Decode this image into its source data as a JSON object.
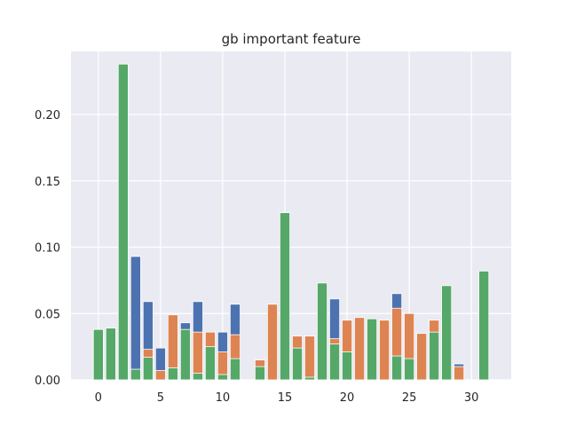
{
  "chart_data": {
    "type": "bar",
    "title": "gb important feature",
    "xlabel": "",
    "ylabel": "",
    "xlim": [
      -2.2,
      33.2
    ],
    "ylim": [
      0,
      0.2475
    ],
    "xticks": [
      0,
      5,
      10,
      15,
      20,
      25,
      30
    ],
    "yticks": [
      0.0,
      0.05,
      0.1,
      0.15,
      0.2
    ],
    "ytick_labels": [
      "0.00",
      "0.05",
      "0.10",
      "0.15",
      "0.20"
    ],
    "grid": true,
    "background": "#eaeaf2",
    "colors": {
      "blue": "#4c72b0",
      "orange": "#dd8452",
      "green": "#55a868"
    },
    "series": [
      {
        "color": "#4c72b0",
        "x": [
          0,
          1,
          2,
          3,
          4,
          5,
          6,
          7,
          8,
          9,
          10,
          11,
          12,
          13,
          14,
          15,
          16,
          17,
          18,
          19,
          20,
          21,
          22,
          23,
          24,
          25,
          26,
          27,
          28,
          29,
          30,
          31
        ],
        "values": [
          0.0,
          0.0,
          0.0,
          0.093,
          0.059,
          0.024,
          0.0,
          0.043,
          0.059,
          0.0,
          0.036,
          0.057,
          0.0,
          0.0,
          0.0,
          0.0,
          0.0,
          0.0,
          0.0,
          0.061,
          0.0,
          0.0,
          0.0,
          0.0,
          0.065,
          0.0,
          0.0,
          0.0,
          0.0,
          0.012,
          0.0,
          0.0
        ]
      },
      {
        "color": "#dd8452",
        "x": [
          0,
          1,
          2,
          3,
          4,
          5,
          6,
          7,
          8,
          9,
          10,
          11,
          12,
          13,
          14,
          15,
          16,
          17,
          18,
          19,
          20,
          21,
          22,
          23,
          24,
          25,
          26,
          27,
          28,
          29,
          30,
          31
        ],
        "values": [
          0.0,
          0.0,
          0.0,
          0.0,
          0.023,
          0.007,
          0.049,
          0.0,
          0.036,
          0.036,
          0.021,
          0.034,
          0.0,
          0.015,
          0.057,
          0.0,
          0.033,
          0.033,
          0.0,
          0.031,
          0.045,
          0.047,
          0.0,
          0.045,
          0.054,
          0.05,
          0.035,
          0.045,
          0.0,
          0.01,
          0.0,
          0.0
        ]
      },
      {
        "color": "#55a868",
        "x": [
          0,
          1,
          2,
          3,
          4,
          5,
          6,
          7,
          8,
          9,
          10,
          11,
          12,
          13,
          14,
          15,
          16,
          17,
          18,
          19,
          20,
          21,
          22,
          23,
          24,
          25,
          26,
          27,
          28,
          29,
          30,
          31
        ],
        "values": [
          0.038,
          0.039,
          0.238,
          0.008,
          0.017,
          0.0,
          0.009,
          0.038,
          0.005,
          0.025,
          0.004,
          0.016,
          0.0,
          0.01,
          0.0,
          0.126,
          0.024,
          0.002,
          0.073,
          0.027,
          0.021,
          0.0,
          0.046,
          0.0,
          0.018,
          0.016,
          0.0,
          0.036,
          0.071,
          0.0,
          0.0,
          0.082
        ]
      }
    ]
  }
}
